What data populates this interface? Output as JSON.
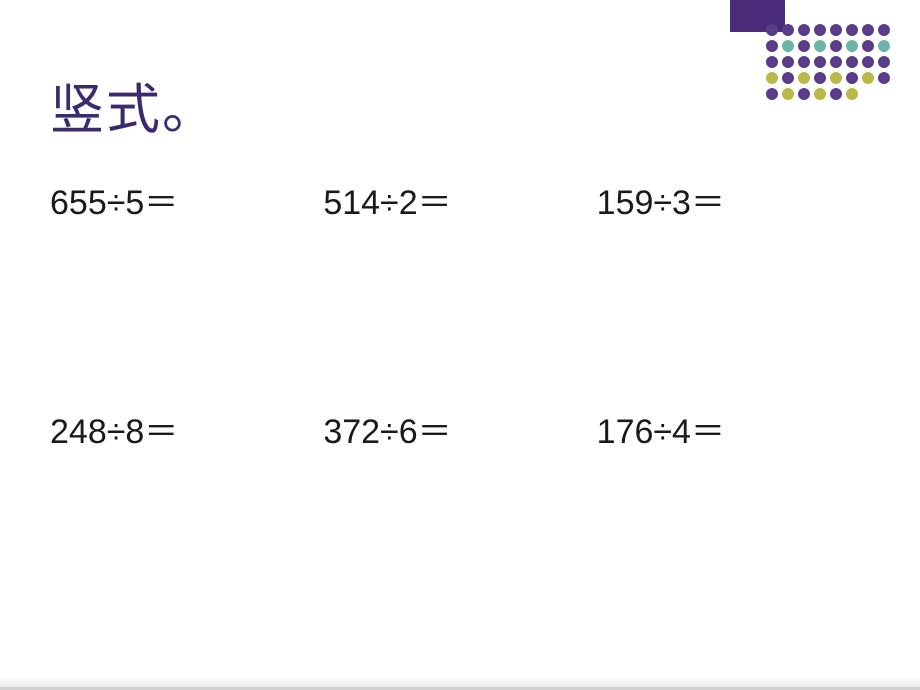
{
  "title": {
    "text": "竖式。",
    "color": "#3d2a6d",
    "fontsize": 54
  },
  "problems": {
    "text_color": "#1a1a1a",
    "fontsize": 34,
    "row1": [
      {
        "dividend": "655",
        "divisor": "5"
      },
      {
        "dividend": "514",
        "divisor": "2"
      },
      {
        "dividend": "159",
        "divisor": "3"
      }
    ],
    "row2": [
      {
        "dividend": "248",
        "divisor": "8"
      },
      {
        "dividend": "372",
        "divisor": "6"
      },
      {
        "dividend": "176",
        "divisor": "4"
      }
    ],
    "division_sign": "÷",
    "equals_sign": "＝"
  },
  "decoration": {
    "bar_color": "#4a2c7a",
    "dot_colors": {
      "purple": "#5a3d8a",
      "teal": "#6bb5a8",
      "olive": "#b8b848"
    },
    "pattern": [
      [
        "purple",
        "purple",
        "purple",
        "purple",
        "purple",
        "purple",
        "purple",
        "purple"
      ],
      [
        "purple",
        "teal",
        "purple",
        "teal",
        "purple",
        "teal",
        "purple",
        "teal"
      ],
      [
        "purple",
        "purple",
        "purple",
        "purple",
        "purple",
        "purple",
        "purple",
        "purple"
      ],
      [
        "olive",
        "purple",
        "olive",
        "purple",
        "olive",
        "purple",
        "olive",
        "purple"
      ],
      [
        "purple",
        "olive",
        "purple",
        "olive",
        "purple",
        "olive"
      ]
    ]
  },
  "background_color": "#ffffff"
}
